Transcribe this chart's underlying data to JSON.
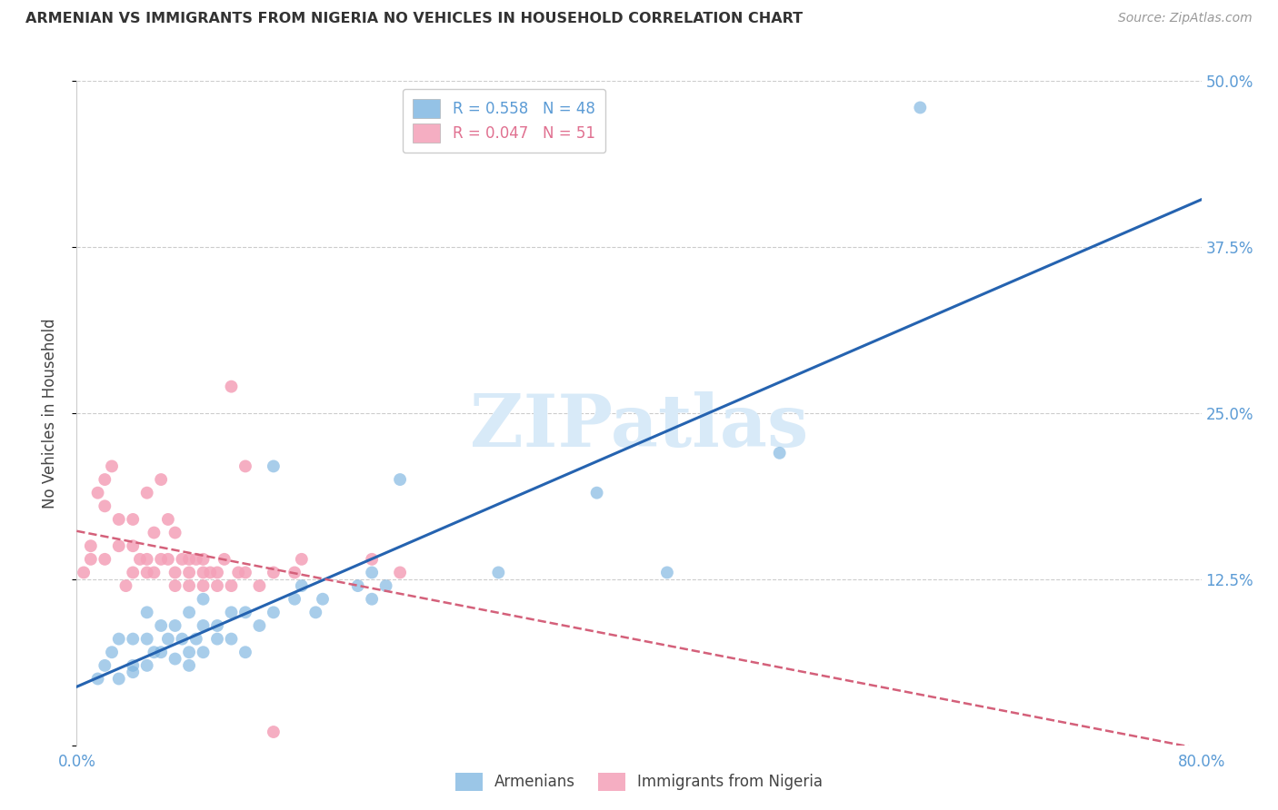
{
  "title": "ARMENIAN VS IMMIGRANTS FROM NIGERIA NO VEHICLES IN HOUSEHOLD CORRELATION CHART",
  "source": "Source: ZipAtlas.com",
  "ylabel": "No Vehicles in Household",
  "xlim": [
    0.0,
    0.8
  ],
  "ylim": [
    0.0,
    0.5
  ],
  "xticks": [
    0.0,
    0.2,
    0.4,
    0.6,
    0.8
  ],
  "xticklabels": [
    "0.0%",
    "",
    "",
    "",
    "80.0%"
  ],
  "yticks": [
    0.0,
    0.125,
    0.25,
    0.375,
    0.5
  ],
  "yticklabels": [
    "",
    "12.5%",
    "25.0%",
    "37.5%",
    "50.0%"
  ],
  "blue_color": "#7ab3e0",
  "pink_color": "#f4a0b8",
  "blue_line_color": "#2563b0",
  "pink_line_color": "#d4607a",
  "background_color": "#ffffff",
  "grid_color": "#cccccc",
  "watermark_text": "ZIPatlas",
  "watermark_color": "#d8eaf8",
  "armenians_x": [
    0.015,
    0.02,
    0.025,
    0.03,
    0.03,
    0.04,
    0.04,
    0.04,
    0.05,
    0.05,
    0.05,
    0.055,
    0.06,
    0.06,
    0.065,
    0.07,
    0.07,
    0.075,
    0.08,
    0.08,
    0.08,
    0.085,
    0.09,
    0.09,
    0.09,
    0.1,
    0.1,
    0.11,
    0.11,
    0.12,
    0.12,
    0.13,
    0.14,
    0.14,
    0.155,
    0.16,
    0.17,
    0.175,
    0.2,
    0.21,
    0.21,
    0.22,
    0.23,
    0.3,
    0.37,
    0.42,
    0.5,
    0.6
  ],
  "armenians_y": [
    0.05,
    0.06,
    0.07,
    0.08,
    0.05,
    0.08,
    0.06,
    0.055,
    0.1,
    0.08,
    0.06,
    0.07,
    0.09,
    0.07,
    0.08,
    0.09,
    0.065,
    0.08,
    0.1,
    0.07,
    0.06,
    0.08,
    0.07,
    0.09,
    0.11,
    0.09,
    0.08,
    0.1,
    0.08,
    0.1,
    0.07,
    0.09,
    0.1,
    0.21,
    0.11,
    0.12,
    0.1,
    0.11,
    0.12,
    0.11,
    0.13,
    0.12,
    0.2,
    0.13,
    0.19,
    0.13,
    0.22,
    0.48
  ],
  "nigeria_x": [
    0.005,
    0.01,
    0.01,
    0.015,
    0.02,
    0.02,
    0.02,
    0.025,
    0.03,
    0.03,
    0.035,
    0.04,
    0.04,
    0.04,
    0.045,
    0.05,
    0.05,
    0.05,
    0.055,
    0.055,
    0.06,
    0.06,
    0.065,
    0.065,
    0.07,
    0.07,
    0.07,
    0.075,
    0.08,
    0.08,
    0.08,
    0.085,
    0.09,
    0.09,
    0.09,
    0.095,
    0.1,
    0.1,
    0.105,
    0.11,
    0.11,
    0.115,
    0.12,
    0.12,
    0.13,
    0.14,
    0.155,
    0.16,
    0.21,
    0.23,
    0.14
  ],
  "nigeria_y": [
    0.13,
    0.14,
    0.15,
    0.19,
    0.2,
    0.14,
    0.18,
    0.21,
    0.17,
    0.15,
    0.12,
    0.17,
    0.15,
    0.13,
    0.14,
    0.19,
    0.14,
    0.13,
    0.16,
    0.13,
    0.2,
    0.14,
    0.17,
    0.14,
    0.16,
    0.13,
    0.12,
    0.14,
    0.13,
    0.14,
    0.12,
    0.14,
    0.13,
    0.12,
    0.14,
    0.13,
    0.12,
    0.13,
    0.14,
    0.27,
    0.12,
    0.13,
    0.21,
    0.13,
    0.12,
    0.13,
    0.13,
    0.14,
    0.14,
    0.13,
    0.01
  ]
}
